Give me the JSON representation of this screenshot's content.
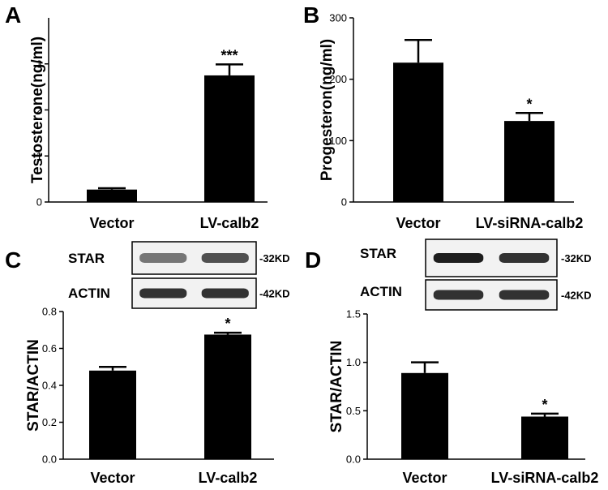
{
  "chart_data": [
    {
      "panel": "A",
      "type": "bar",
      "categories": [
        "Vector",
        "LV-calb2"
      ],
      "values": [
        0.27,
        2.75
      ],
      "errors": [
        0.03,
        0.24
      ],
      "significance": [
        "",
        "***"
      ],
      "ylabel": "Testosterone(ng/ml)",
      "ylim": [
        0,
        4
      ],
      "yticks": [
        "0",
        "1",
        "2",
        "3"
      ],
      "ytick_values": [
        0,
        1,
        2,
        3
      ],
      "color": "#000000"
    },
    {
      "panel": "B",
      "type": "bar",
      "categories": [
        "Vector",
        "LV-siRNA-calb2"
      ],
      "values": [
        227,
        132
      ],
      "errors": [
        37,
        13
      ],
      "significance": [
        "",
        "*"
      ],
      "ylabel": "Progesteron(ng/ml)",
      "ylim": [
        0,
        300
      ],
      "yticks": [
        "0",
        "100",
        "200",
        "300"
      ],
      "ytick_values": [
        0,
        100,
        200,
        300
      ],
      "color": "#000000"
    },
    {
      "panel": "C",
      "type": "bar",
      "categories": [
        "Vector",
        "LV-calb2"
      ],
      "values": [
        0.48,
        0.675
      ],
      "errors": [
        0.02,
        0.01
      ],
      "significance": [
        "",
        "*"
      ],
      "ylabel": "STAR/ACTIN",
      "ylim": [
        0,
        0.8
      ],
      "yticks": [
        "0.0",
        "0.2",
        "0.4",
        "0.6",
        "0.8"
      ],
      "ytick_values": [
        0,
        0.2,
        0.4,
        0.6,
        0.8
      ],
      "color": "#000000",
      "blots": [
        {
          "label": "STAR",
          "size": "-32KD",
          "intensity": [
            0.55,
            0.72
          ]
        },
        {
          "label": "ACTIN",
          "size": "-42KD",
          "intensity": [
            0.85,
            0.85
          ]
        }
      ]
    },
    {
      "panel": "D",
      "type": "bar",
      "categories": [
        "Vector",
        "LV-siRNA-calb2"
      ],
      "values": [
        0.89,
        0.44
      ],
      "errors": [
        0.11,
        0.03
      ],
      "significance": [
        "",
        "*"
      ],
      "ylabel": "STAR/ACTIN",
      "ylim": [
        0,
        1.5
      ],
      "yticks": [
        "0.0",
        "0.5",
        "1.0",
        "1.5"
      ],
      "ytick_values": [
        0,
        0.5,
        1.0,
        1.5
      ],
      "color": "#000000",
      "blots": [
        {
          "label": "STAR",
          "size": "-32KD",
          "intensity": [
            0.95,
            0.85
          ]
        },
        {
          "label": "ACTIN",
          "size": "-42KD",
          "intensity": [
            0.85,
            0.85
          ]
        }
      ]
    }
  ]
}
